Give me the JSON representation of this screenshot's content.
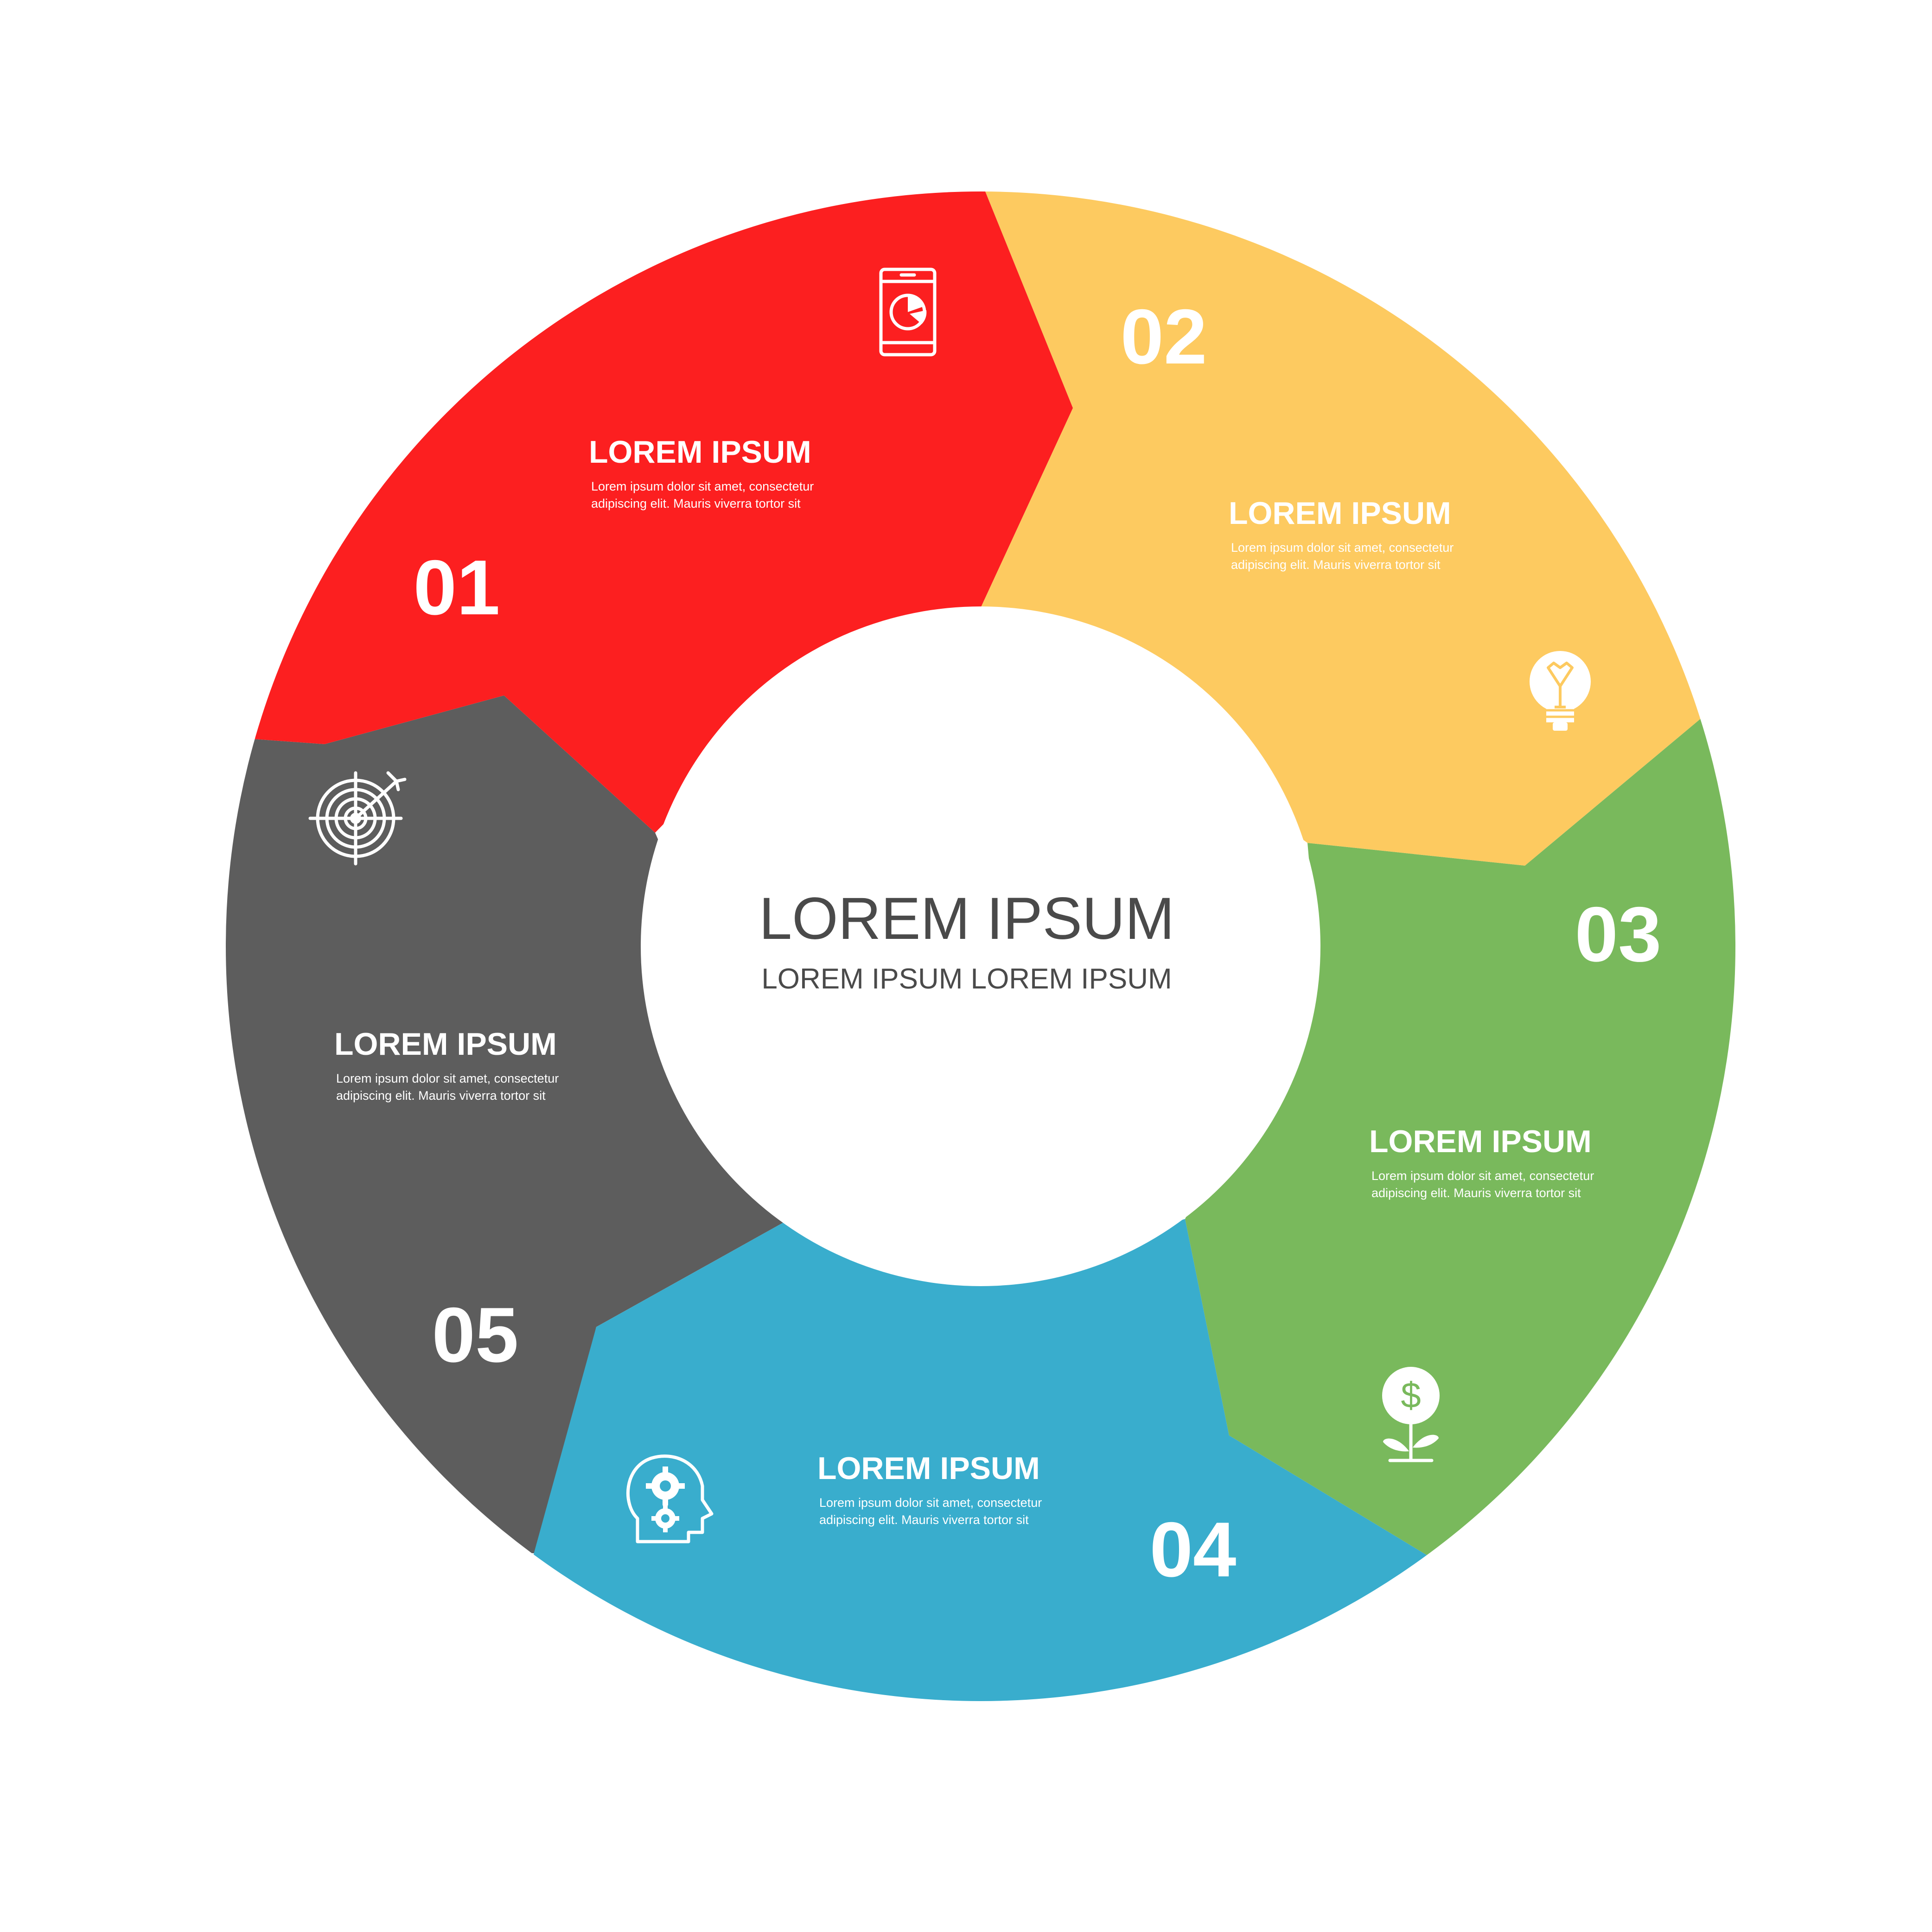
{
  "center": {
    "title": "LOREM IPSUM",
    "subtitle": "LOREM IPSUM LOREM IPSUM"
  },
  "segments": [
    {
      "number": "01",
      "color": "#fc1f20",
      "title": "LOREM IPSUM",
      "text_line1": "Lorem ipsum dolor sit amet, consectetur",
      "text_line2": "adipiscing elit. Mauris viverra tortor sit",
      "icon": "tablet-chart-icon"
    },
    {
      "number": "02",
      "color": "#fdca60",
      "title": "LOREM IPSUM",
      "text_line1": "Lorem ipsum dolor sit amet, consectetur",
      "text_line2": "adipiscing elit. Mauris viverra tortor sit",
      "icon": "lightbulb-icon"
    },
    {
      "number": "03",
      "color": "#79b95c",
      "title": "LOREM IPSUM",
      "text_line1": "Lorem ipsum dolor sit amet, consectetur",
      "text_line2": "adipiscing elit. Mauris viverra tortor sit",
      "icon": "money-plant-icon"
    },
    {
      "number": "04",
      "color": "#39adcd",
      "title": "LOREM IPSUM",
      "text_line1": "Lorem ipsum dolor sit amet, consectetur",
      "text_line2": "adipiscing elit. Mauris viverra tortor sit",
      "icon": "head-gears-icon"
    },
    {
      "number": "05",
      "color": "#5d5d5d",
      "title": "LOREM IPSUM",
      "text_line1": "Lorem ipsum dolor sit amet, consectetur",
      "text_line2": "adipiscing elit. Mauris viverra tortor sit",
      "icon": "target-arrow-icon"
    }
  ]
}
